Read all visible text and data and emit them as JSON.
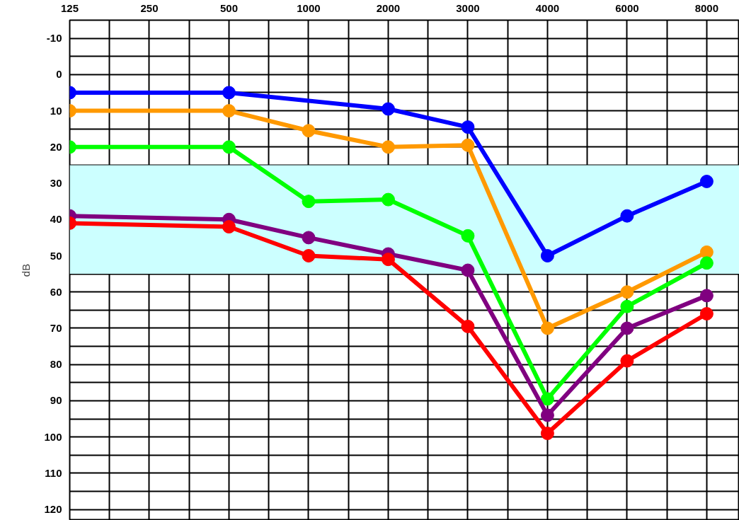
{
  "chart_data": {
    "type": "line",
    "ylabel": "dB",
    "categories": [
      "125",
      "250",
      "500",
      "1000",
      "2000",
      "3000",
      "4000",
      "6000",
      "8000"
    ],
    "series": [
      {
        "color": "#0000ff",
        "values": [
          5,
          null,
          5,
          null,
          9.5,
          14.5,
          50,
          39,
          29.5
        ]
      },
      {
        "color": "#ff9900",
        "values": [
          10,
          null,
          10,
          15.5,
          20,
          19.5,
          70,
          60,
          49
        ]
      },
      {
        "color": "#00ff00",
        "values": [
          20,
          null,
          20,
          35,
          34.5,
          44.5,
          89.5,
          64,
          52
        ]
      },
      {
        "color": "#800080",
        "values": [
          39,
          null,
          40,
          45,
          49.5,
          54,
          94,
          70,
          61
        ]
      },
      {
        "color": "#ff0000",
        "values": [
          41,
          null,
          42,
          50,
          51,
          69.5,
          99,
          79,
          66
        ]
      }
    ],
    "ylim": [
      123,
      -15
    ],
    "yticks": [
      -10,
      0,
      10,
      20,
      30,
      40,
      50,
      60,
      70,
      80,
      90,
      100,
      110,
      120
    ],
    "bands": [
      {
        "axis": "y",
        "from": 25,
        "to": 55,
        "color": "#ccffff"
      }
    ],
    "grid": true,
    "marker": "circle",
    "line_style": "solid"
  }
}
